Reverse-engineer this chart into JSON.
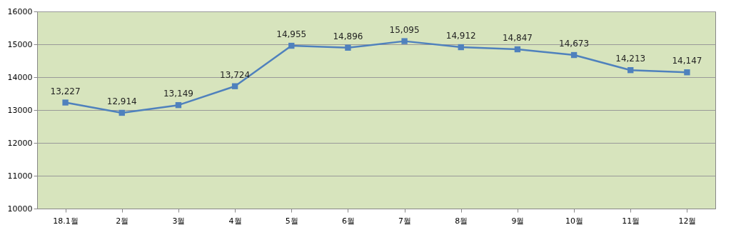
{
  "chart_data": {
    "type": "line",
    "categories": [
      "18.1월",
      "2월",
      "3월",
      "4월",
      "5월",
      "6월",
      "7월",
      "8월",
      "9월",
      "10월",
      "11월",
      "12월"
    ],
    "series": [
      {
        "color": "#4f81bd",
        "values": [
          13227,
          12914,
          13149,
          13724,
          14955,
          14896,
          15095,
          14912,
          14847,
          14673,
          14213,
          14147
        ],
        "value_labels": [
          "13,227",
          "12,914",
          "13,149",
          "13,724",
          "14,955",
          "14,896",
          "15,095",
          "14,912",
          "14,847",
          "14,673",
          "14,213",
          "14,147"
        ]
      }
    ],
    "ylim": [
      10000,
      16000
    ],
    "yticks": [
      10000,
      11000,
      12000,
      13000,
      14000,
      15000,
      16000
    ],
    "grid": "y",
    "marker": "square",
    "line_style": "solid"
  }
}
